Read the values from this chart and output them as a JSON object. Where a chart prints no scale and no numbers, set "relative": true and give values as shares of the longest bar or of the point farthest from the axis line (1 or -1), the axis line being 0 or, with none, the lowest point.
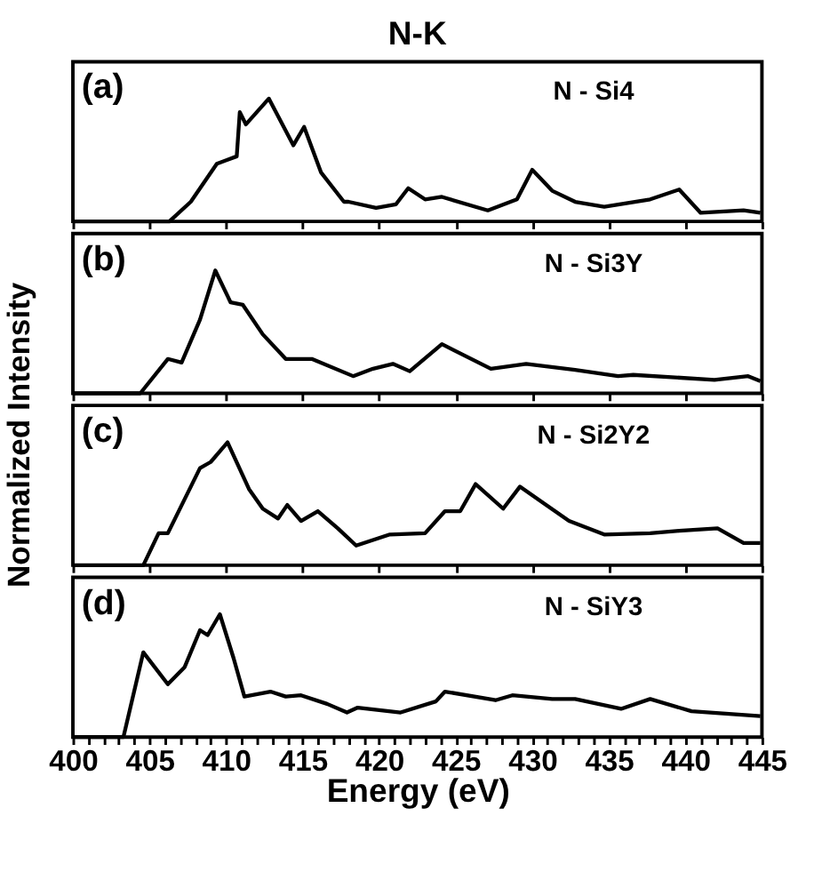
{
  "chart_data": [
    {
      "type": "line",
      "title": "N-K",
      "ylabel": "Normalized Intensity",
      "relative": true,
      "xlim": [
        400,
        445
      ],
      "xticks": [
        400,
        405,
        410,
        415,
        420,
        425,
        430,
        435,
        440,
        445
      ],
      "tick_labels": false,
      "grid": false,
      "line_style": "solid",
      "annotations": [
        "(a)",
        "N - Si4"
      ],
      "series": [
        {
          "color": "#000000",
          "x": [
            400,
            406.3,
            407.7,
            409.4,
            410.7,
            410.9,
            411.3,
            412.8,
            414.4,
            415.1,
            416.2,
            417.7,
            418.0,
            419.8,
            421.1,
            421.9,
            423.0,
            424.1,
            427.1,
            429.0,
            430.0,
            431.3,
            432.8,
            434.7,
            437.7,
            439.6,
            441.0,
            443.8,
            444.9
          ],
          "values": [
            0,
            0,
            0.16,
            0.47,
            0.53,
            0.89,
            0.79,
            1.0,
            0.62,
            0.77,
            0.4,
            0.16,
            0.16,
            0.11,
            0.14,
            0.27,
            0.18,
            0.2,
            0.09,
            0.18,
            0.42,
            0.25,
            0.16,
            0.12,
            0.18,
            0.26,
            0.07,
            0.09,
            0.07
          ]
        }
      ]
    },
    {
      "type": "line",
      "relative": true,
      "xlim": [
        400,
        445
      ],
      "xticks": [
        400,
        405,
        410,
        415,
        420,
        425,
        430,
        435,
        440,
        445
      ],
      "tick_labels": false,
      "grid": false,
      "line_style": "solid",
      "annotations": [
        "(b)",
        "N - Si3Y"
      ],
      "series": [
        {
          "color": "#000000",
          "x": [
            400,
            404.4,
            406.2,
            407.1,
            408.3,
            409.3,
            410.3,
            411.1,
            412.4,
            413.9,
            415.6,
            418.3,
            419.6,
            420.9,
            422.0,
            424.1,
            427.3,
            429.6,
            432.8,
            435.6,
            436.6,
            441.9,
            444.1,
            444.9
          ],
          "values": [
            0,
            0,
            0.28,
            0.25,
            0.6,
            1.0,
            0.74,
            0.72,
            0.48,
            0.28,
            0.28,
            0.14,
            0.2,
            0.24,
            0.18,
            0.4,
            0.2,
            0.24,
            0.19,
            0.14,
            0.15,
            0.11,
            0.14,
            0.1
          ]
        }
      ]
    },
    {
      "type": "line",
      "relative": true,
      "xlim": [
        400,
        445
      ],
      "xticks": [
        400,
        405,
        410,
        415,
        420,
        425,
        430,
        435,
        440,
        445
      ],
      "tick_labels": false,
      "grid": false,
      "line_style": "solid",
      "annotations": [
        "(c)",
        "N - Si2Y2"
      ],
      "series": [
        {
          "color": "#000000",
          "x": [
            400,
            404.6,
            405.6,
            406.2,
            408.3,
            409.0,
            410.1,
            411.5,
            412.4,
            413.4,
            414.0,
            414.9,
            416.0,
            417.3,
            418.5,
            420.7,
            423.0,
            424.3,
            425.3,
            426.3,
            428.1,
            429.2,
            430.9,
            432.4,
            434.7,
            437.7,
            439.6,
            442.1,
            443.8,
            444.9
          ],
          "values": [
            0,
            0,
            0.26,
            0.26,
            0.79,
            0.84,
            1.0,
            0.62,
            0.46,
            0.38,
            0.49,
            0.36,
            0.44,
            0.3,
            0.16,
            0.25,
            0.26,
            0.44,
            0.44,
            0.66,
            0.46,
            0.64,
            0.49,
            0.36,
            0.25,
            0.26,
            0.28,
            0.3,
            0.18,
            0.18
          ]
        }
      ]
    },
    {
      "type": "line",
      "xlabel": "Energy (eV)",
      "relative": true,
      "xlim": [
        400,
        445
      ],
      "xticks": [
        400,
        {
          "value": 401,
          "label": null
        },
        {
          "value": 402,
          "label": null
        },
        {
          "value": 403,
          "label": null
        },
        {
          "value": 404,
          "label": null
        },
        405,
        {
          "value": 406,
          "label": null
        },
        {
          "value": 407,
          "label": null
        },
        {
          "value": 408,
          "label": null
        },
        {
          "value": 409,
          "label": null
        },
        410,
        {
          "value": 411,
          "label": null
        },
        {
          "value": 412,
          "label": null
        },
        {
          "value": 413,
          "label": null
        },
        {
          "value": 414,
          "label": null
        },
        415,
        {
          "value": 416,
          "label": null
        },
        {
          "value": 417,
          "label": null
        },
        {
          "value": 418,
          "label": null
        },
        {
          "value": 419,
          "label": null
        },
        420,
        {
          "value": 421,
          "label": null
        },
        {
          "value": 422,
          "label": null
        },
        {
          "value": 423,
          "label": null
        },
        {
          "value": 424,
          "label": null
        },
        425,
        {
          "value": 426,
          "label": null
        },
        {
          "value": 427,
          "label": null
        },
        {
          "value": 428,
          "label": null
        },
        {
          "value": 429,
          "label": null
        },
        430,
        {
          "value": 431,
          "label": null
        },
        {
          "value": 432,
          "label": null
        },
        {
          "value": 433,
          "label": null
        },
        {
          "value": 434,
          "label": null
        },
        435,
        {
          "value": 436,
          "label": null
        },
        {
          "value": 437,
          "label": null
        },
        {
          "value": 438,
          "label": null
        },
        {
          "value": 439,
          "label": null
        },
        440,
        {
          "value": 441,
          "label": null
        },
        {
          "value": 442,
          "label": null
        },
        {
          "value": 443,
          "label": null
        },
        {
          "value": 444,
          "label": null
        },
        445
      ],
      "tick_labels": "x",
      "grid": false,
      "line_style": "solid",
      "annotations": [
        "(d)",
        "N - SiY3"
      ],
      "series": [
        {
          "color": "#000000",
          "x": [
            400,
            403.3,
            404.6,
            406.2,
            407.3,
            408.3,
            408.8,
            409.6,
            410.5,
            411.2,
            412.9,
            413.9,
            414.9,
            416.6,
            417.9,
            418.6,
            421.4,
            423.7,
            424.3,
            427.6,
            428.7,
            431.3,
            432.8,
            435.8,
            437.7,
            440.4,
            444.9
          ],
          "values": [
            0,
            0,
            0.69,
            0.43,
            0.57,
            0.87,
            0.83,
            1.0,
            0.64,
            0.33,
            0.37,
            0.33,
            0.34,
            0.27,
            0.2,
            0.24,
            0.2,
            0.29,
            0.37,
            0.3,
            0.34,
            0.31,
            0.31,
            0.23,
            0.31,
            0.21,
            0.17
          ]
        }
      ]
    }
  ]
}
